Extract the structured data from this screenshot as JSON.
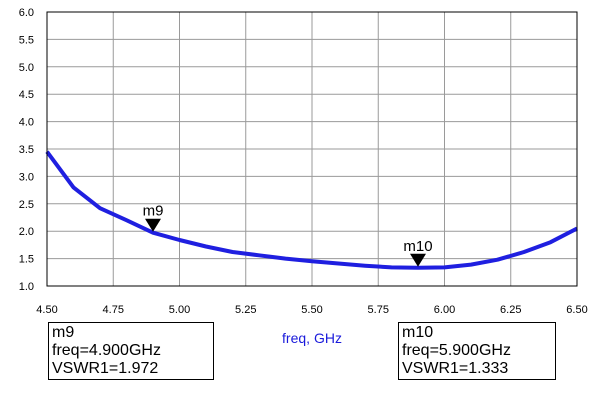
{
  "chart_data": {
    "type": "line",
    "xlabel": "freq, GHz",
    "ylabel": "",
    "title": "",
    "xlim": [
      4.5,
      6.5
    ],
    "ylim": [
      1.0,
      6.0
    ],
    "xticks": [
      "4.50",
      "4.75",
      "5.00",
      "5.25",
      "5.50",
      "5.75",
      "6.00",
      "6.25",
      "6.50"
    ],
    "yticks": [
      "1.0",
      "1.5",
      "2.0",
      "2.5",
      "3.0",
      "3.5",
      "4.0",
      "4.5",
      "5.0",
      "5.5",
      "6.0"
    ],
    "grid": true,
    "line_color": "#1f1fe0",
    "series": [
      {
        "x": [
          4.5,
          4.6,
          4.7,
          4.8,
          4.9,
          5.0,
          5.1,
          5.2,
          5.3,
          5.4,
          5.5,
          5.6,
          5.7,
          5.8,
          5.9,
          6.0,
          6.1,
          6.2,
          6.3,
          6.4,
          6.5
        ],
        "y": [
          3.45,
          2.8,
          2.42,
          2.2,
          1.972,
          1.84,
          1.72,
          1.62,
          1.56,
          1.5,
          1.45,
          1.41,
          1.37,
          1.34,
          1.333,
          1.34,
          1.39,
          1.48,
          1.62,
          1.8,
          2.05
        ]
      }
    ],
    "markers": [
      {
        "name": "m9",
        "x": 4.9,
        "y": 1.972,
        "lines": [
          "m9",
          "freq=4.900GHz",
          "VSWR1=1.972"
        ]
      },
      {
        "name": "m10",
        "x": 5.9,
        "y": 1.333,
        "lines": [
          "m10",
          "freq=5.900GHz",
          "VSWR1=1.333"
        ]
      }
    ]
  }
}
